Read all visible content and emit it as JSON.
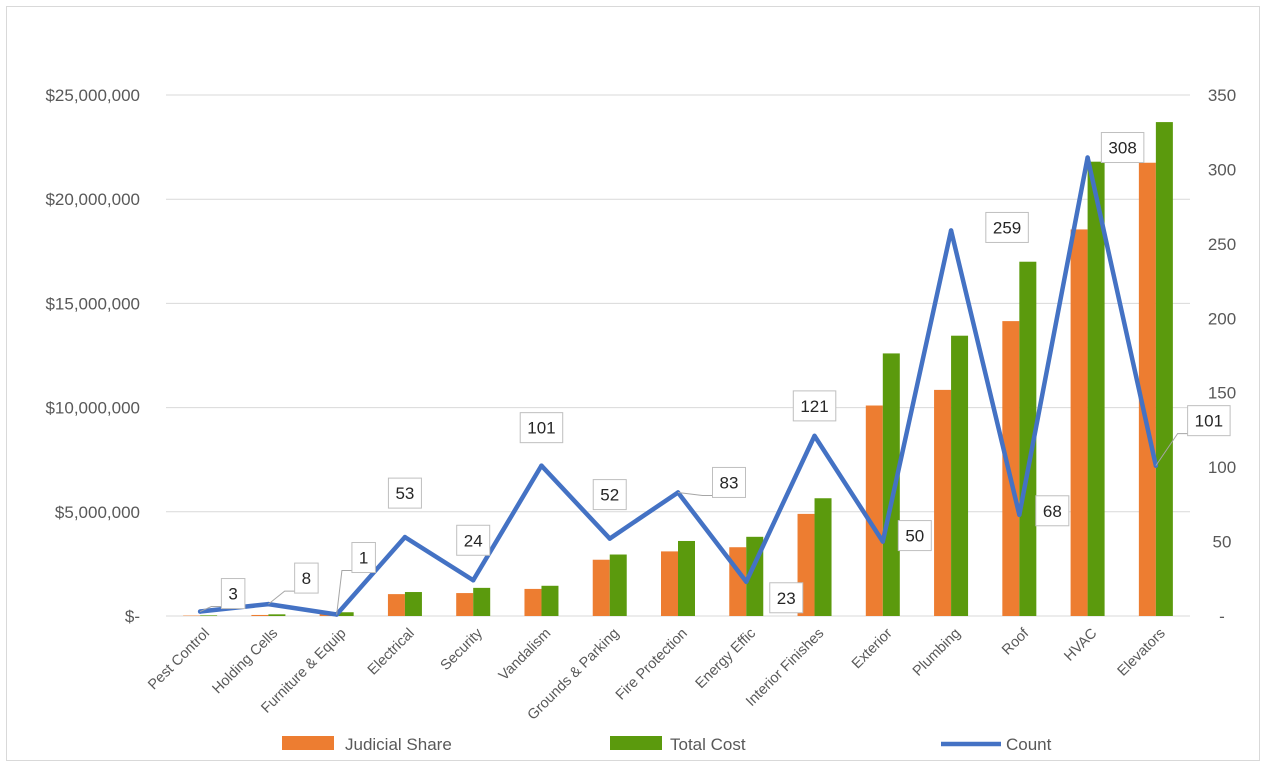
{
  "chart_data": {
    "type": "bar",
    "categories": [
      "Pest Control",
      "Holding Cells",
      "Furniture & Equip",
      "Electrical",
      "Security",
      "Vandalism",
      "Grounds & Parking",
      "Fire Protection",
      "Energy Effic",
      "Interior Finishes",
      "Exterior",
      "Plumbing",
      "Roof",
      "HVAC",
      "Elevators"
    ],
    "series": [
      {
        "name": "Judicial Share",
        "kind": "bar",
        "axis": "left",
        "color": "#ed7d31",
        "values": [
          20000,
          50000,
          100000,
          1050000,
          1100000,
          1300000,
          2700000,
          3100000,
          3300000,
          4900000,
          10100000,
          10850000,
          14150000,
          18550000,
          21750000
        ]
      },
      {
        "name": "Total Cost",
        "kind": "bar",
        "axis": "left",
        "color": "#5b9a0d",
        "values": [
          30000,
          80000,
          180000,
          1150000,
          1350000,
          1450000,
          2950000,
          3600000,
          3800000,
          5650000,
          12600000,
          13450000,
          17000000,
          21800000,
          23700000
        ]
      },
      {
        "name": "Count",
        "kind": "line",
        "axis": "right",
        "color": "#4472c4",
        "values": [
          3,
          8,
          1,
          53,
          24,
          101,
          52,
          83,
          23,
          121,
          50,
          259,
          68,
          308,
          101
        ]
      }
    ],
    "y_left": {
      "ylim": [
        0,
        25000000
      ],
      "ticks": [
        0,
        5000000,
        10000000,
        15000000,
        20000000,
        25000000
      ],
      "tick_labels": [
        "$-",
        "$5,000,000",
        "$10,000,000",
        "$15,000,000",
        "$20,000,000",
        "$25,000,000"
      ]
    },
    "y_right": {
      "ylim": [
        0,
        350
      ],
      "ticks": [
        0,
        50,
        100,
        150,
        200,
        250,
        300,
        350
      ],
      "tick_labels": [
        "-",
        "50",
        "100",
        "150",
        "200",
        "250",
        "300",
        "350"
      ]
    },
    "data_labels": [
      "3",
      "8",
      "1",
      "53",
      "24",
      "101",
      "52",
      "83",
      "23",
      "121",
      "50",
      "259",
      "68",
      "308",
      "101"
    ],
    "grid": true,
    "legend": {
      "position": "bottom",
      "entries": [
        "Judicial Share",
        "Total Cost",
        "Count"
      ]
    },
    "title": "",
    "xlabel": "",
    "ylabel": ""
  }
}
